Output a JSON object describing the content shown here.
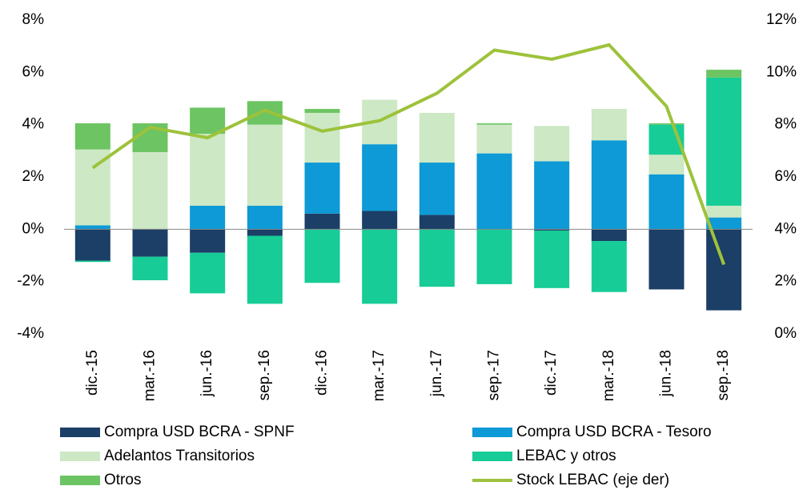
{
  "chart_data": {
    "type": "bar",
    "stacked": true,
    "categories": [
      "dic.-15",
      "mar.-16",
      "jun.-16",
      "sep.-16",
      "dic.-16",
      "mar.-17",
      "jun.-17",
      "sep.-17",
      "dic.-17",
      "mar.-18",
      "jun.-18",
      "sep.-18"
    ],
    "series": [
      {
        "name": "Compra USD BCRA - SPNF",
        "color": "#1b3f66",
        "values": [
          -1.2,
          -1.05,
          -0.9,
          -0.25,
          0.6,
          0.7,
          0.55,
          0,
          -0.05,
          -0.45,
          -2.3,
          -3.1
        ]
      },
      {
        "name": "Compra USD BCRA - Tesoro",
        "color": "#0d9ad6",
        "values": [
          0.15,
          0,
          0.9,
          0.9,
          1.95,
          2.55,
          2.0,
          2.9,
          2.6,
          3.4,
          2.1,
          0.45
        ]
      },
      {
        "name": "Adelantos Transitorios",
        "color": "#cde8c4",
        "values": [
          2.9,
          2.95,
          2.75,
          3.1,
          1.9,
          1.7,
          1.9,
          1.1,
          1.35,
          1.2,
          0.75,
          0.45
        ]
      },
      {
        "name": "LEBAC y otros",
        "color": "#17cc96",
        "values": [
          -0.05,
          -0.9,
          -1.55,
          -2.6,
          -2.05,
          -2.85,
          -2.2,
          -2.1,
          -2.2,
          -1.95,
          1.15,
          4.9
        ]
      },
      {
        "name": "Otros",
        "color": "#6cc462",
        "values": [
          1.0,
          1.1,
          1.0,
          0.9,
          0.15,
          0,
          0,
          0.05,
          0,
          0,
          0.05,
          0.3
        ]
      },
      {
        "name": "Stock LEBAC (eje der)",
        "type": "line",
        "axis": "y2",
        "color": "#9dc23b",
        "values": [
          6.35,
          7.9,
          7.5,
          8.55,
          7.75,
          8.15,
          9.2,
          10.85,
          10.5,
          11.05,
          8.7,
          2.65
        ]
      }
    ],
    "ylim": [
      -4,
      8
    ],
    "yticks": [
      {
        "value": -4,
        "label": "-4%"
      },
      {
        "value": -2,
        "label": "-2%"
      },
      {
        "value": 0,
        "label": "0%"
      },
      {
        "value": 2,
        "label": "2%"
      },
      {
        "value": 4,
        "label": "4%"
      },
      {
        "value": 6,
        "label": "6%"
      },
      {
        "value": 8,
        "label": "8%"
      }
    ],
    "y2lim": [
      0,
      12
    ],
    "y2ticks": [
      {
        "value": 0,
        "label": "0%"
      },
      {
        "value": 2,
        "label": "2%"
      },
      {
        "value": 4,
        "label": "4%"
      },
      {
        "value": 6,
        "label": "6%"
      },
      {
        "value": 8,
        "label": "8%"
      },
      {
        "value": 10,
        "label": "10%"
      },
      {
        "value": 12,
        "label": "12%"
      }
    ]
  }
}
